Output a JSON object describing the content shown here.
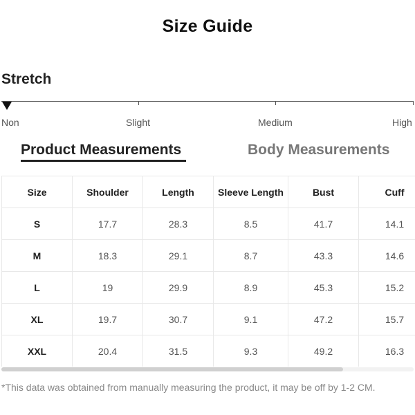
{
  "title": "Size Guide",
  "stretch": {
    "heading": "Stretch",
    "levels": [
      "Non",
      "Slight",
      "Medium",
      "High"
    ],
    "selected": "Non"
  },
  "tabs": [
    {
      "label": "Product Measurements",
      "active": true
    },
    {
      "label": "Body Measurements",
      "active": false
    }
  ],
  "table": {
    "headers": [
      "Size",
      "Shoulder",
      "Length",
      "Sleeve Length",
      "Bust",
      "Cuff"
    ],
    "rows": [
      [
        "S",
        "17.7",
        "28.3",
        "8.5",
        "41.7",
        "14.1"
      ],
      [
        "M",
        "18.3",
        "29.1",
        "8.7",
        "43.3",
        "14.6"
      ],
      [
        "L",
        "19",
        "29.9",
        "8.9",
        "45.3",
        "15.2"
      ],
      [
        "XL",
        "19.7",
        "30.7",
        "9.1",
        "47.2",
        "15.7"
      ],
      [
        "XXL",
        "20.4",
        "31.5",
        "9.3",
        "49.2",
        "16.3"
      ]
    ]
  },
  "footnote": "*This data was obtained from manually measuring the product, it may be off by 1-2 CM."
}
